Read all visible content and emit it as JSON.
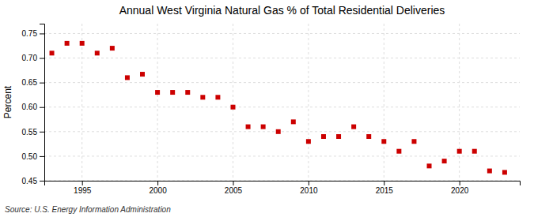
{
  "chart_data": {
    "type": "scatter",
    "title": "Annual West Virginia Natural Gas % of Total Residential Deliveries",
    "ylabel": "Percent",
    "source": "Source: U.S. Energy Information Administration",
    "x": [
      1993,
      1994,
      1995,
      1996,
      1997,
      1998,
      1999,
      2000,
      2001,
      2002,
      2003,
      2004,
      2005,
      2006,
      2007,
      2008,
      2009,
      2010,
      2011,
      2012,
      2013,
      2014,
      2015,
      2016,
      2017,
      2018,
      2019,
      2020,
      2021,
      2022,
      2023
    ],
    "values": [
      0.71,
      0.73,
      0.73,
      0.71,
      0.72,
      0.66,
      0.667,
      0.63,
      0.63,
      0.63,
      0.62,
      0.62,
      0.6,
      0.56,
      0.56,
      0.55,
      0.57,
      0.53,
      0.54,
      0.54,
      0.56,
      0.54,
      0.53,
      0.51,
      0.53,
      0.48,
      0.49,
      0.51,
      0.51,
      0.47,
      0.467
    ],
    "color": "#cc0000",
    "marker": "square",
    "xlim": [
      1992.5,
      2024
    ],
    "ylim": [
      0.45,
      0.77
    ],
    "xticks": [
      1995,
      2000,
      2005,
      2010,
      2015,
      2020
    ],
    "yticks": [
      0.45,
      {
        "value": 0.5,
        "label": "0.50"
      },
      0.55,
      {
        "value": 0.6,
        "label": "0.60"
      },
      0.65,
      {
        "value": 0.7,
        "label": "0.70"
      },
      0.75
    ],
    "grid": true
  }
}
